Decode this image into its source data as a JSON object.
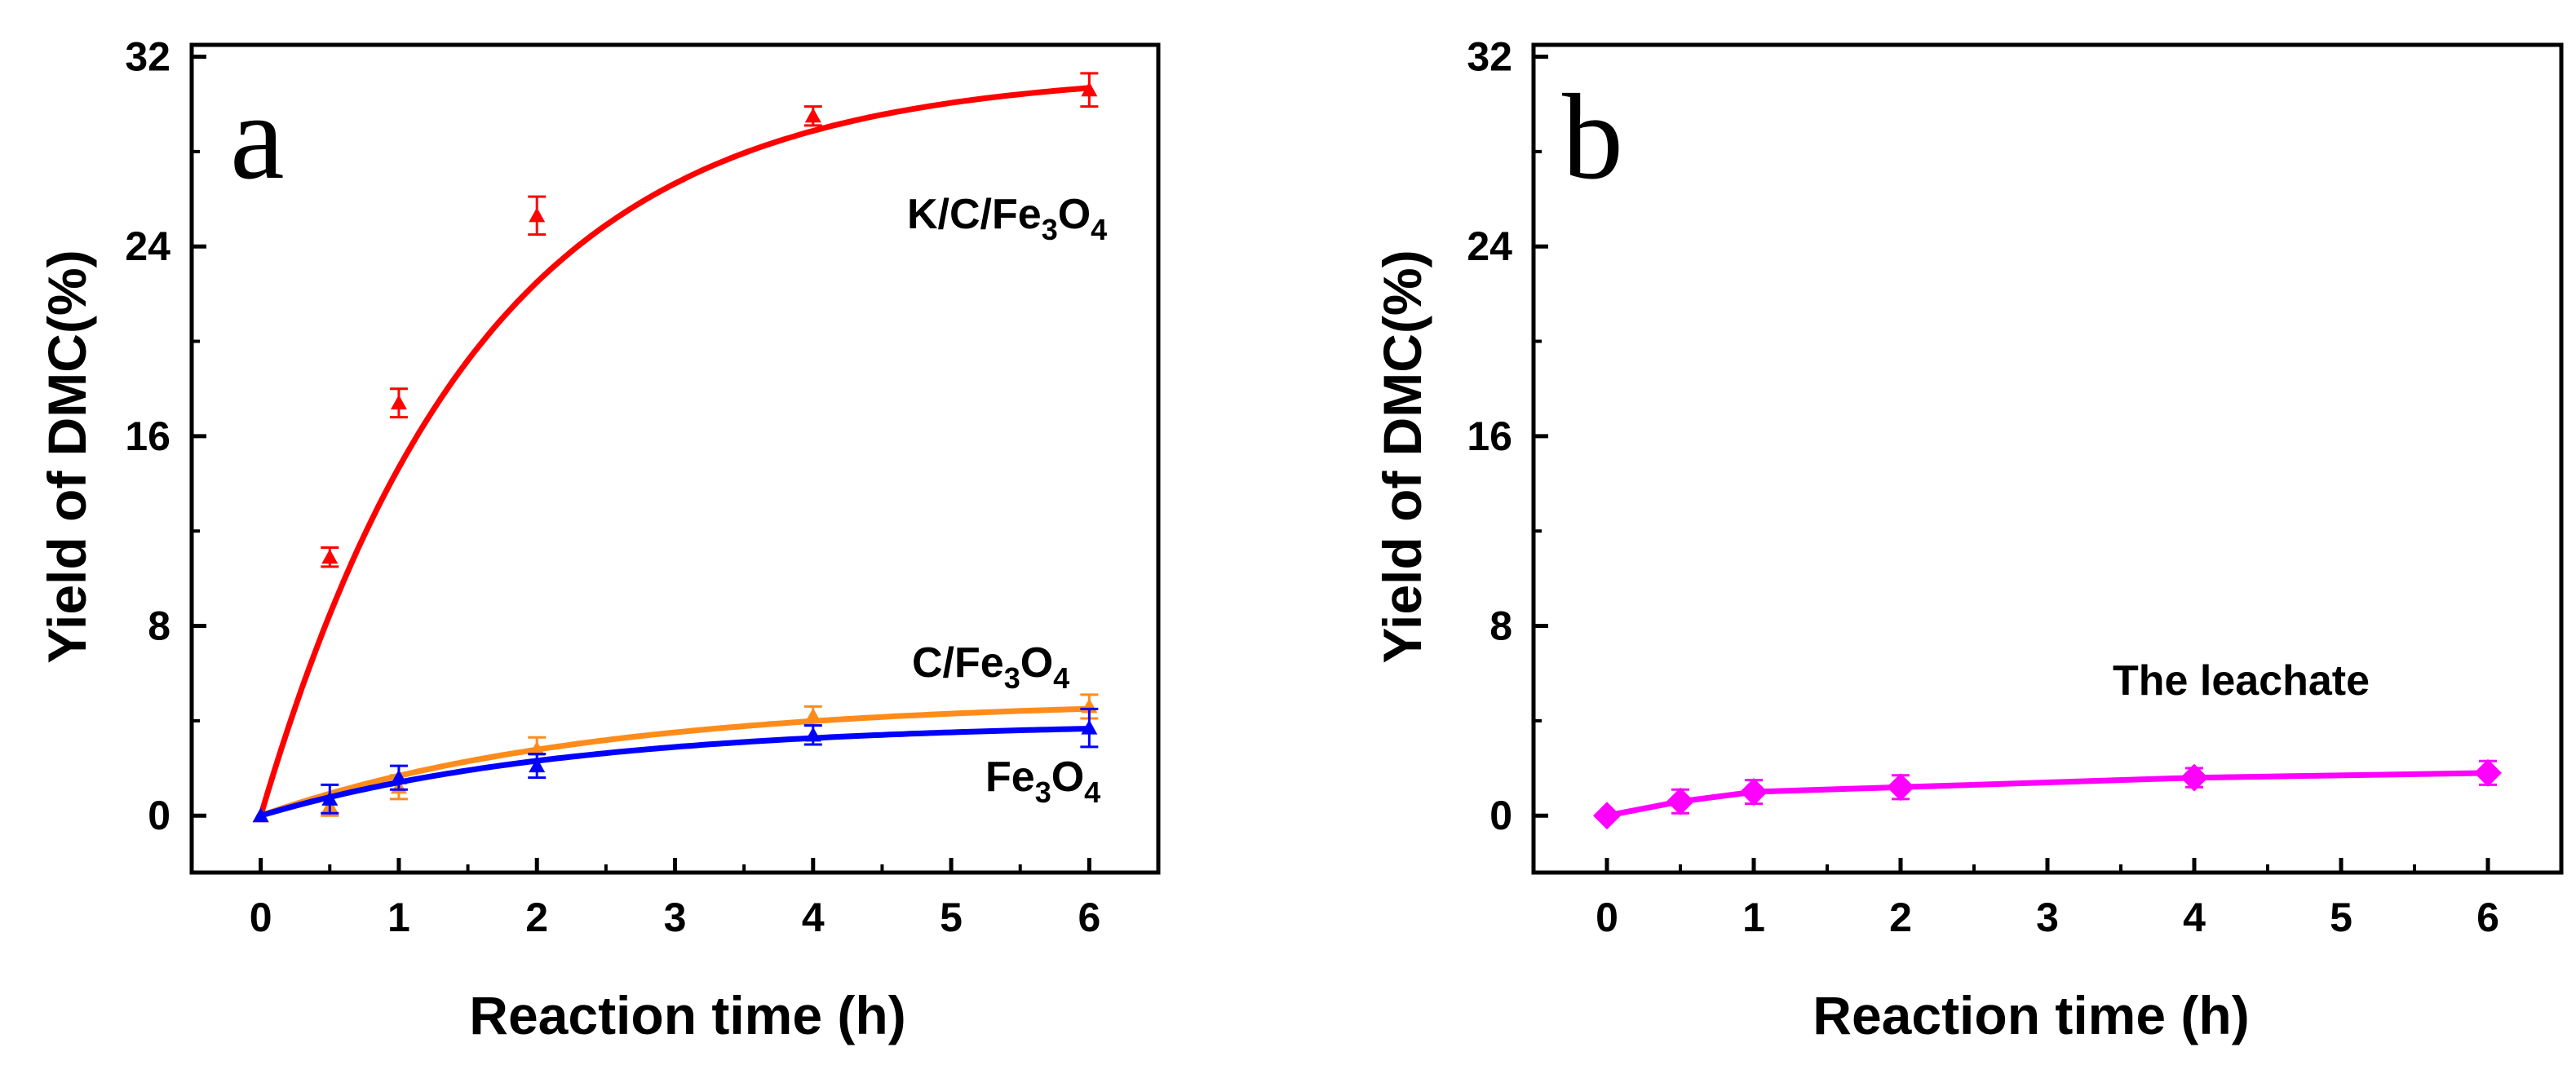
{
  "chart_data": [
    {
      "panel": "a",
      "type": "line",
      "xlabel": "Reaction time (h)",
      "ylabel": "Yield of DMC(%)",
      "xlim": [
        -0.5,
        6.5
      ],
      "ylim": [
        -2.4,
        32.5
      ],
      "xticks": [
        "0",
        "1",
        "2",
        "3",
        "4",
        "5",
        "6"
      ],
      "yticks": [
        "0",
        "8",
        "16",
        "24",
        "32"
      ],
      "series": [
        {
          "name": "K/C/Fe3O4",
          "label_main": "K/C/Fe",
          "label_sub1": "3",
          "label_mid": "O",
          "label_sub2": "4",
          "color": "#ff0000",
          "marker": "triangle",
          "x": [
            0,
            0.5,
            1,
            2,
            4,
            6
          ],
          "y": [
            0,
            10.9,
            17.4,
            25.3,
            29.5,
            30.6
          ],
          "err": [
            0,
            0.4,
            0.6,
            0.8,
            0.4,
            0.7
          ],
          "fit_plateau": 31.4,
          "fit_rate": 0.63
        },
        {
          "name": "C/Fe3O4",
          "label_main": "C/Fe",
          "label_sub1": "3",
          "label_mid": "O",
          "label_sub2": "4",
          "color": "#ff8c1a",
          "marker": "triangle",
          "x": [
            0,
            0.5,
            1,
            2,
            4,
            6
          ],
          "y": [
            0,
            0.4,
            1.2,
            2.8,
            4.2,
            4.6
          ],
          "err": [
            0,
            0.4,
            0.5,
            0.5,
            0.4,
            0.5
          ],
          "fit_plateau": 4.9,
          "fit_rate": 0.42
        },
        {
          "name": "Fe3O4",
          "label_main": "Fe",
          "label_sub1": "3",
          "label_mid": "O",
          "label_sub2": "4",
          "color": "#0000ff",
          "marker": "triangle",
          "x": [
            0,
            0.5,
            1,
            2,
            4,
            6
          ],
          "y": [
            0,
            0.7,
            1.6,
            2.1,
            3.4,
            3.7
          ],
          "err": [
            0,
            0.6,
            0.5,
            0.5,
            0.4,
            0.8
          ],
          "fit_plateau": 3.95,
          "fit_rate": 0.44
        }
      ]
    },
    {
      "panel": "b",
      "type": "line",
      "xlabel": "Reaction time (h)",
      "ylabel": "Yield of DMC(%)",
      "xlim": [
        -0.5,
        6.5
      ],
      "ylim": [
        -2.4,
        32.5
      ],
      "xticks": [
        "0",
        "1",
        "2",
        "3",
        "4",
        "5",
        "6"
      ],
      "yticks": [
        "0",
        "8",
        "16",
        "24",
        "32"
      ],
      "series": [
        {
          "name": "The leachate",
          "color": "#ff00ff",
          "marker": "diamond",
          "x": [
            0,
            0.5,
            1,
            2,
            4,
            6
          ],
          "y": [
            0,
            0.6,
            1.0,
            1.2,
            1.6,
            1.8
          ],
          "err": [
            0,
            0.5,
            0.5,
            0.5,
            0.4,
            0.5
          ]
        }
      ]
    }
  ]
}
